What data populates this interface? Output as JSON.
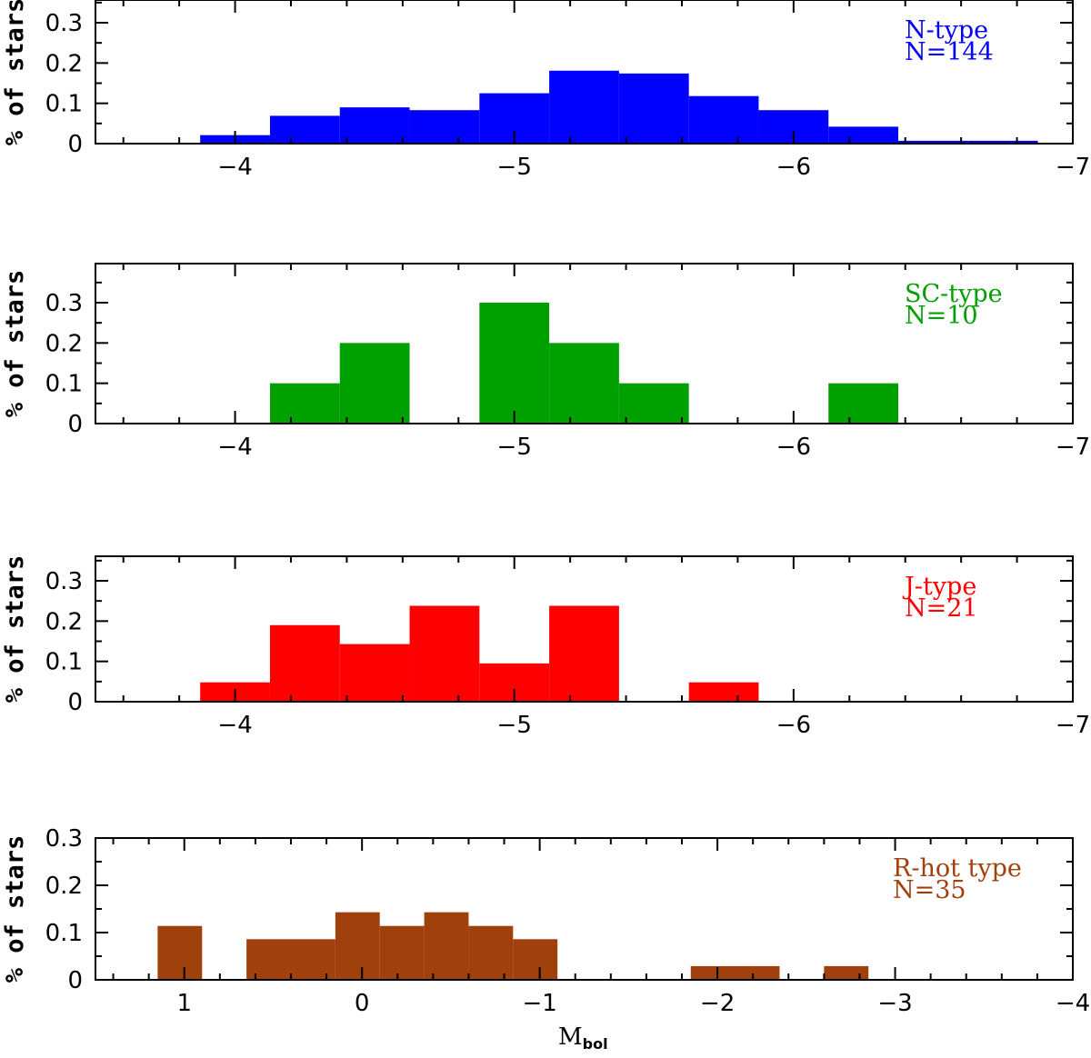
{
  "figure": {
    "xlabel": "M",
    "xlabel_subscript": "bol"
  },
  "chart_data": [
    {
      "type": "bar",
      "title": "N-type",
      "legend": [
        "N-type",
        "N=144"
      ],
      "legend_position": "top-right",
      "color": "#0000ff",
      "ylabel": "% of stars",
      "xlim": [
        -3.5,
        -7
      ],
      "ylim": [
        0,
        0.35
      ],
      "x_ticks": [
        -4,
        -5,
        -6,
        -7
      ],
      "x_tick_labels": [
        "−4",
        "−5",
        "−6",
        "−7"
      ],
      "y_ticks": [
        0,
        0.1,
        0.2,
        0.3
      ],
      "y_tick_labels": [
        "0",
        "0.1",
        "0.2",
        "0.3"
      ],
      "bin_edges": [
        -3.875,
        -4.125,
        -4.375,
        -4.625,
        -4.875,
        -5.125,
        -5.375,
        -5.625,
        -5.875,
        -6.125,
        -6.375,
        -6.625,
        -6.875
      ],
      "values": [
        0.021,
        0.069,
        0.09,
        0.083,
        0.125,
        0.181,
        0.174,
        0.118,
        0.083,
        0.042,
        0.007,
        0.007
      ]
    },
    {
      "type": "bar",
      "title": "SC-type",
      "legend": [
        "SC-type",
        "N=10"
      ],
      "legend_position": "top-right",
      "color": "#00a000",
      "ylabel": "% of stars",
      "xlim": [
        -3.5,
        -7
      ],
      "ylim": [
        0,
        0.35
      ],
      "x_ticks": [
        -4,
        -5,
        -6,
        -7
      ],
      "x_tick_labels": [
        "−4",
        "−5",
        "−6",
        "−7"
      ],
      "y_ticks": [
        0,
        0.1,
        0.2,
        0.3
      ],
      "y_tick_labels": [
        "0",
        "0.1",
        "0.2",
        "0.3"
      ],
      "bin_edges": [
        -3.875,
        -4.125,
        -4.375,
        -4.625,
        -4.875,
        -5.125,
        -5.375,
        -5.625,
        -5.875,
        -6.125,
        -6.375
      ],
      "values": [
        0,
        0.1,
        0.2,
        0,
        0.3,
        0.2,
        0.1,
        0,
        0,
        0.1
      ]
    },
    {
      "type": "bar",
      "title": "J-type",
      "legend": [
        "J-type",
        "N=21"
      ],
      "legend_position": "top-right",
      "color": "#ff0000",
      "ylabel": "% of stars",
      "xlim": [
        -3.5,
        -7
      ],
      "ylim": [
        0,
        0.35
      ],
      "x_ticks": [
        -4,
        -5,
        -6,
        -7
      ],
      "x_tick_labels": [
        "−4",
        "−5",
        "−6",
        "−7"
      ],
      "y_ticks": [
        0,
        0.1,
        0.2,
        0.3
      ],
      "y_tick_labels": [
        "0",
        "0.1",
        "0.2",
        "0.3"
      ],
      "bin_edges": [
        -3.875,
        -4.125,
        -4.375,
        -4.625,
        -4.875,
        -5.125,
        -5.375,
        -5.625,
        -5.875
      ],
      "values": [
        0.048,
        0.19,
        0.143,
        0.238,
        0.095,
        0.238,
        0,
        0.048
      ]
    },
    {
      "type": "bar",
      "title": "R-hot type",
      "legend": [
        "R-hot type",
        "N=35"
      ],
      "legend_position": "top-right",
      "color": "#a0400c",
      "ylabel": "% of stars",
      "xlim": [
        1.5,
        -4
      ],
      "ylim": [
        0,
        0.3
      ],
      "x_ticks": [
        1,
        0,
        -1,
        -2,
        -3,
        -4
      ],
      "x_tick_labels": [
        "1",
        "0",
        "−1",
        "−2",
        "−3",
        "−4"
      ],
      "y_ticks": [
        0,
        0.1,
        0.2,
        0.3
      ],
      "y_tick_labels": [
        "0",
        "0.1",
        "0.2",
        "0.3"
      ],
      "bars": [
        {
          "x0": 1.15,
          "x1": 0.9,
          "value": 0.114
        },
        {
          "x0": 0.65,
          "x1": 0.15,
          "value": 0.086
        },
        {
          "x0": 0.15,
          "x1": -0.1,
          "value": 0.143
        },
        {
          "x0": -0.1,
          "x1": -0.35,
          "value": 0.114
        },
        {
          "x0": -0.35,
          "x1": -0.6,
          "value": 0.143
        },
        {
          "x0": -0.6,
          "x1": -0.85,
          "value": 0.114
        },
        {
          "x0": -0.85,
          "x1": -1.1,
          "value": 0.086
        },
        {
          "x0": -1.85,
          "x1": -2.35,
          "value": 0.029
        },
        {
          "x0": -2.6,
          "x1": -2.85,
          "value": 0.029
        }
      ]
    }
  ]
}
